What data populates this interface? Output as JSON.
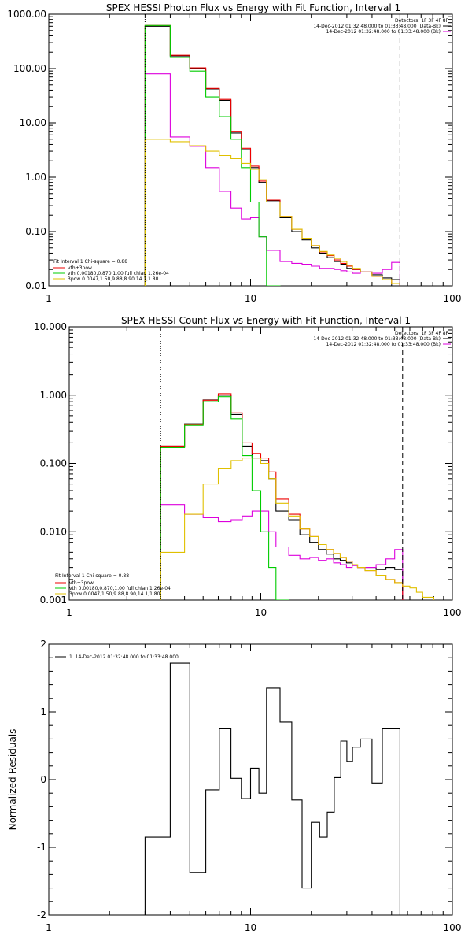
{
  "chart_data": [
    {
      "type": "line",
      "title": "SPEX HESSI Photon Flux vs Energy with Fit Function, Interval 1",
      "xscale": "log",
      "yscale": "log",
      "xlim": [
        1,
        100
      ],
      "ylim": [
        0.01,
        1000
      ],
      "x_ticks": [
        "1",
        "10",
        "100"
      ],
      "y_ticks": [
        "1000.00",
        "100.00",
        "10.00",
        "1.00",
        "0.10",
        "0.01"
      ],
      "info_lines": [
        "Detectors: 1F 3F 4F 8F",
        "14-Dec-2012 01:32:48.000 to 01:33:48.000 (Data-Bk)",
        "14-Dec-2012 01:32:48.000 to 01:33:48.000 (Bk)"
      ],
      "fit_header": "Fit Interval 1   Chi-square = 0.88",
      "legend": [
        "vth+3pow",
        "vth 0.00180,0.870,1.00  full chian 1.26e-04",
        "3pow 0.0047,1.50,9.88,8.90,14.1,1.80"
      ],
      "edges": [
        3,
        3.5,
        4,
        5,
        6,
        7,
        8,
        9,
        10,
        11,
        12,
        14,
        16,
        18,
        20,
        22,
        24,
        26,
        28,
        30,
        32,
        35,
        40,
        45,
        50,
        55
      ],
      "vlines": [
        3,
        55
      ],
      "series": [
        {
          "name": "Data-Bk",
          "color": "#000000",
          "values": [
            600,
            600,
            170,
            100,
            42,
            26,
            6.5,
            3.2,
            1.5,
            0.8,
            0.37,
            0.18,
            0.1,
            0.07,
            0.05,
            0.04,
            0.033,
            0.028,
            0.025,
            0.021,
            0.02,
            0.018,
            0.016,
            0.014,
            0.013
          ]
        },
        {
          "name": "Bk",
          "color": "#dd00dd",
          "values": [
            80,
            80,
            5.5,
            3.7,
            1.5,
            0.55,
            0.27,
            0.17,
            0.18,
            0.08,
            0.045,
            0.028,
            0.026,
            0.025,
            0.023,
            0.021,
            0.021,
            0.02,
            0.019,
            0.018,
            0.017,
            0.018,
            0.017,
            0.02,
            0.027
          ]
        },
        {
          "name": "vth+3pow",
          "color": "#ee0000",
          "values": [
            620,
            620,
            175,
            103,
            43,
            27,
            7,
            3.4,
            1.6,
            0.85,
            0.38,
            0.19,
            0.11,
            0.075,
            0.055,
            0.042,
            0.036,
            0.03,
            0.026,
            0.023,
            0.02,
            0.018,
            0.015,
            0.013,
            0.011
          ]
        },
        {
          "name": "vth",
          "color": "#00cc00",
          "values": [
            620,
            620,
            160,
            90,
            30,
            13,
            5,
            1.5,
            0.35,
            0.08,
            0.01
          ]
        },
        {
          "name": "3pow",
          "color": "#e0c000",
          "values": [
            5,
            5,
            4.5,
            3.8,
            3,
            2.5,
            2.2,
            1.8,
            1.4,
            0.9,
            0.35,
            0.19,
            0.11,
            0.075,
            0.055,
            0.043,
            0.037,
            0.032,
            0.028,
            0.024,
            0.021,
            0.018,
            0.015,
            0.013,
            0.011
          ]
        }
      ]
    },
    {
      "type": "line",
      "title": "SPEX HESSI Count Flux vs Energy with Fit Function, Interval 1",
      "xscale": "log",
      "yscale": "log",
      "xlim": [
        1,
        100
      ],
      "ylim": [
        0.001,
        10
      ],
      "x_ticks": [
        "1",
        "10",
        "100"
      ],
      "y_ticks": [
        "10.000",
        "1.000",
        "0.100",
        "0.010",
        "0.001"
      ],
      "info_lines": [
        "Detectors: 1F 3F 4F 8F",
        "14-Dec-2012 01:32:48.000 to 01:33:48.000 (Data-Bk)",
        "14-Dec-2012 01:32:48.000 to 01:33:48.000 (Bk)"
      ],
      "fit_header": "Fit Interval 1   Chi-square = 0.88",
      "legend": [
        "vth+3pow",
        "vth 0.00180,0.870,1.00  full chian 1.26e-04",
        "3pow 0.0047,1.50,9.88,8.90,14.1,1.80"
      ],
      "edges": [
        3,
        3.5,
        4,
        5,
        6,
        7,
        8,
        9,
        10,
        11,
        12,
        14,
        16,
        18,
        20,
        22,
        24,
        26,
        28,
        30,
        32,
        35,
        40,
        45,
        50,
        55
      ],
      "edges_model": [
        3,
        3.5,
        4,
        5,
        6,
        7,
        8,
        9,
        10,
        11,
        12,
        14,
        16,
        18,
        20,
        22,
        24,
        26,
        28,
        30,
        32,
        35,
        40,
        45,
        50,
        55,
        60,
        65,
        70,
        80
      ],
      "vlines": [
        3,
        55
      ],
      "series": [
        {
          "name": "Data-Bk",
          "color": "#000000",
          "values": [
            0.18,
            0.18,
            0.38,
            0.85,
            1.0,
            0.52,
            0.18,
            0.12,
            0.11,
            0.06,
            0.02,
            0.015,
            0.009,
            0.007,
            0.0055,
            0.0047,
            0.004,
            0.0038,
            0.0035,
            0.0033,
            0.003,
            0.003,
            0.0028,
            0.003,
            0.0028
          ]
        },
        {
          "name": "Bk",
          "color": "#dd00dd",
          "values": [
            0.025,
            0.025,
            0.018,
            0.016,
            0.014,
            0.015,
            0.017,
            0.02,
            0.02,
            0.01,
            0.006,
            0.0045,
            0.004,
            0.0042,
            0.0038,
            0.004,
            0.0035,
            0.0033,
            0.003,
            0.0032,
            0.003,
            0.003,
            0.0033,
            0.004,
            0.0055
          ]
        },
        {
          "name": "vth+3pow",
          "color": "#ee0000",
          "values": [
            0.18,
            0.18,
            0.37,
            0.84,
            1.05,
            0.55,
            0.2,
            0.14,
            0.12,
            0.075,
            0.03,
            0.018,
            0.011,
            0.0085,
            0.0065,
            0.0055,
            0.0048,
            0.0042,
            0.0037,
            0.0033,
            0.003,
            0.0027,
            0.0023,
            0.002,
            0.0018
          ]
        },
        {
          "name": "vth",
          "color": "#00cc00",
          "values": [
            0.17,
            0.17,
            0.36,
            0.8,
            0.95,
            0.45,
            0.13,
            0.04,
            0.01,
            0.003,
            0.001
          ]
        },
        {
          "name": "3pow",
          "color": "#e0c000",
          "values": [
            0.005,
            0.005,
            0.018,
            0.05,
            0.085,
            0.11,
            0.12,
            0.12,
            0.1,
            0.06,
            0.026,
            0.017,
            0.011,
            0.0085,
            0.0065,
            0.0055,
            0.0048,
            0.0042,
            0.0037,
            0.0033,
            0.003,
            0.0027,
            0.0023,
            0.002,
            0.0018,
            0.0016,
            0.0015,
            0.0013,
            0.0011
          ]
        }
      ]
    },
    {
      "type": "line",
      "title": "",
      "xscale": "log",
      "yscale": "linear",
      "xlim": [
        1,
        100
      ],
      "ylim": [
        -2,
        2
      ],
      "x_ticks": [
        "1",
        "10",
        "100"
      ],
      "y_ticks": [
        "2",
        "1",
        "0",
        "-1",
        "-2"
      ],
      "ylabel": "Normalized Residuals",
      "legend": [
        "1. 14-Dec-2012 01:32:48.000 to 01:33:48.000"
      ],
      "edges": [
        3,
        3.5,
        4,
        5,
        6,
        7,
        8,
        9,
        10,
        11,
        12,
        14,
        16,
        18,
        20,
        22,
        24,
        26,
        28,
        30,
        32,
        35,
        40,
        45,
        50,
        55
      ],
      "series": [
        {
          "name": "1. 14-Dec-2012 01:32:48.000 to 01:33:48.000",
          "color": "#000000",
          "values": [
            -0.85,
            -0.85,
            1.72,
            -1.37,
            -0.15,
            0.75,
            0.02,
            -0.28,
            0.17,
            -0.2,
            1.35,
            0.85,
            -0.3,
            -1.6,
            -0.63,
            -0.85,
            -0.48,
            0.03,
            0.57,
            0.27,
            0.48,
            0.6,
            -0.05,
            0.75,
            0.75
          ]
        }
      ]
    }
  ]
}
